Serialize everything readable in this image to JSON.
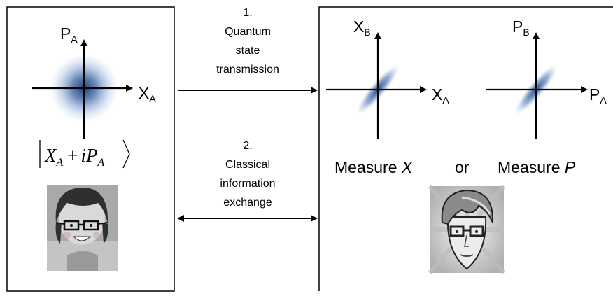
{
  "steps": {
    "step1": {
      "number": "1.",
      "lines": [
        "Quantum",
        "state",
        "transmission"
      ]
    },
    "step2": {
      "number": "2.",
      "lines": [
        "Classical",
        "information",
        "exchange"
      ]
    }
  },
  "alice": {
    "axis_vertical": {
      "main": "P",
      "sub": "A"
    },
    "axis_horizontal": {
      "main": "X",
      "sub": "A"
    },
    "state": {
      "x": "X",
      "x_sub": "A",
      "plus": "+",
      "i": "i",
      "p": "P",
      "p_sub": "A"
    }
  },
  "bob": {
    "plot1": {
      "vertical": {
        "main": "X",
        "sub": "B"
      },
      "horizontal": {
        "main": "X",
        "sub": "A"
      }
    },
    "plot2": {
      "vertical": {
        "main": "P",
        "sub": "B"
      },
      "horizontal": {
        "main": "P",
        "sub": "A"
      }
    },
    "measure_x": {
      "prefix": "Measure ",
      "var": "X"
    },
    "or": "or",
    "measure_p": {
      "prefix": "Measure ",
      "var": "P"
    }
  },
  "colors": {
    "blob": "#1f3d73",
    "panel_border": "#000000",
    "bg": "#ffffff"
  },
  "icons": [
    "alice-avatar",
    "bob-avatar"
  ]
}
